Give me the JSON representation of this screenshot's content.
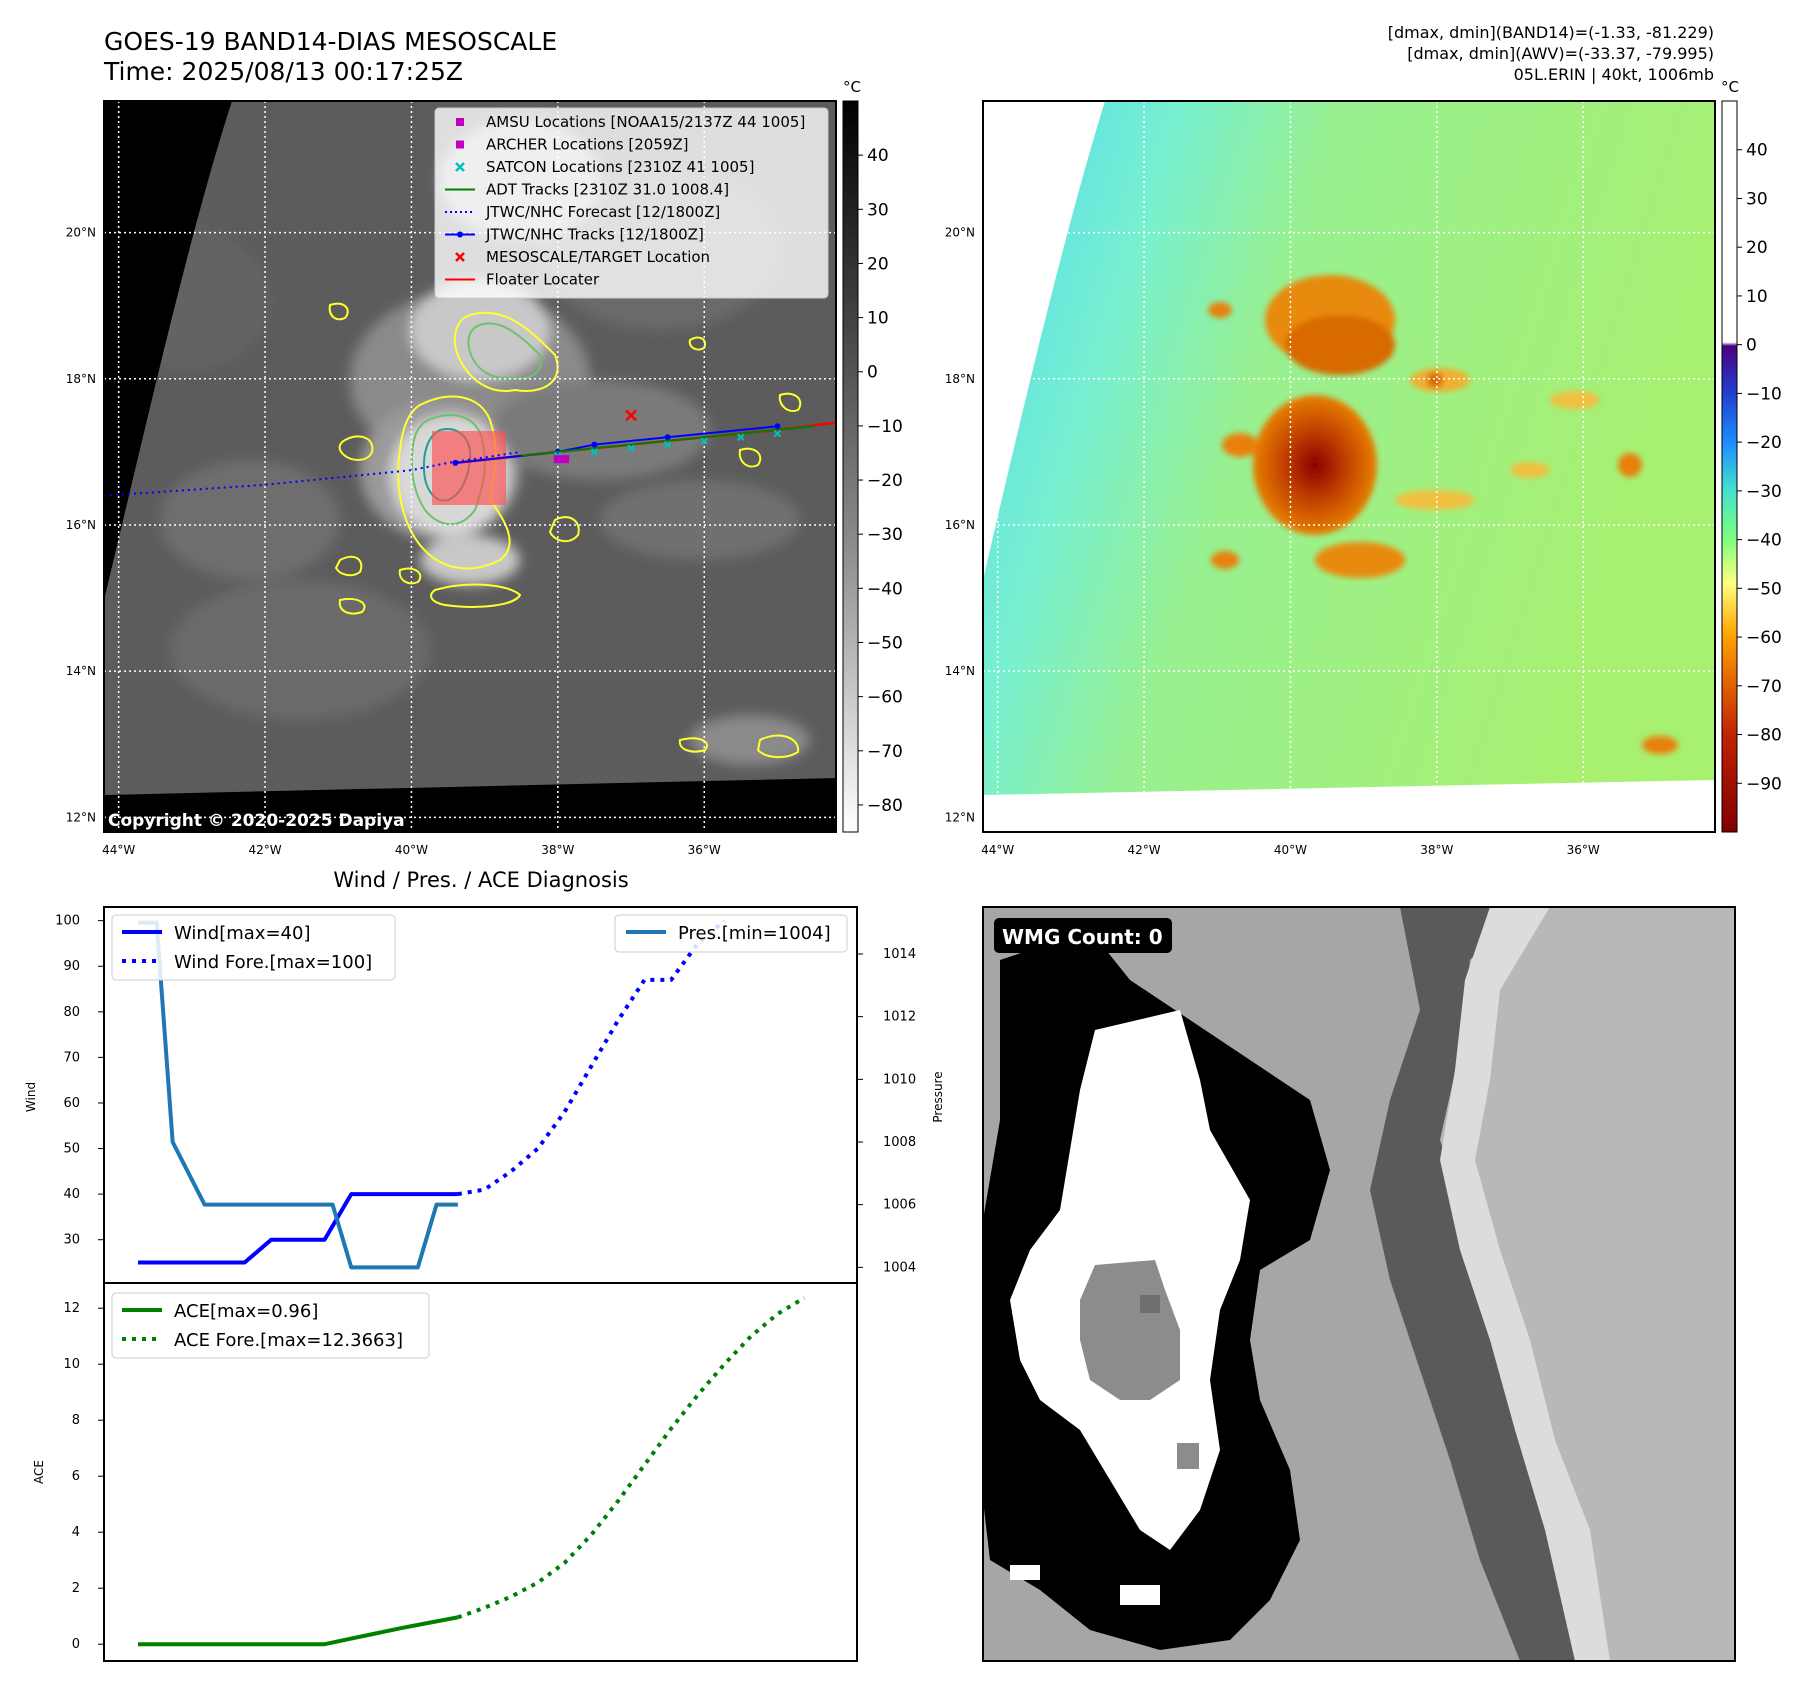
{
  "header": {
    "title_line1": "GOES-19 BAND14-DIAS MESOSCALE",
    "title_line2": "Time: 2025/08/13 00:17:25Z",
    "info_line1": "[dmax, dmin](BAND14)=(-1.33, -81.229)",
    "info_line2": "[dmax, dmin](AWV)=(-33.37, -79.995)",
    "info_line3": "05L.ERIN | 40kt, 1006mb"
  },
  "map_axes": {
    "lat_labels": [
      "20°N",
      "18°N",
      "16°N",
      "14°N",
      "12°N"
    ],
    "lat_values": [
      20,
      18,
      16,
      14,
      12
    ],
    "lon_labels": [
      "44°W",
      "42°W",
      "40°W",
      "38°W",
      "36°W"
    ],
    "lon_values": [
      -44,
      -42,
      -40,
      -38,
      -36
    ],
    "lon_range": [
      -44.2,
      -34.2
    ],
    "lat_range": [
      11.8,
      21.8
    ]
  },
  "ir_panel": {
    "copyright": "Copyright © 2020-2025 Dapiya",
    "colorbar_unit": "°C",
    "colorbar_ticks": [
      "40",
      "30",
      "20",
      "10",
      "0",
      "−10",
      "−20",
      "−30",
      "−40",
      "−50",
      "−60",
      "−70",
      "−80"
    ],
    "colorbar_values": [
      40,
      30,
      20,
      10,
      0,
      -10,
      -20,
      -30,
      -40,
      -50,
      -60,
      -70,
      -80
    ],
    "colorbar_range": [
      -85,
      50
    ],
    "legend": [
      {
        "label": "AMSU Locations [NOAA15/2137Z 44 1005]",
        "color": "#c000c0",
        "marker": "square"
      },
      {
        "label": "ARCHER Locations [2059Z]",
        "color": "#c000c0",
        "marker": "square"
      },
      {
        "label": "SATCON Locations [2310Z 41 1005]",
        "color": "#00c0c0",
        "marker": "x"
      },
      {
        "label": "ADT Tracks [2310Z 31.0 1008.4]",
        "color": "#008000",
        "marker": "line"
      },
      {
        "label": "JTWC/NHC Forecast [12/1800Z]",
        "color": "#0000ff",
        "marker": "dotted"
      },
      {
        "label": "JTWC/NHC Tracks [12/1800Z]",
        "color": "#0000ff",
        "marker": "line-dot"
      },
      {
        "label": "MESOSCALE/TARGET Location",
        "color": "#ff0000",
        "marker": "x"
      },
      {
        "label": "Floater Locater",
        "color": "#ff0000",
        "marker": "line"
      }
    ],
    "target_location": {
      "lon": -37.0,
      "lat": 17.5
    }
  },
  "awv_panel": {
    "colorbar_unit": "°C",
    "colorbar_ticks": [
      "40",
      "30",
      "20",
      "10",
      "0",
      "−10",
      "−20",
      "−30",
      "−40",
      "−50",
      "−60",
      "−70",
      "−80",
      "−90"
    ],
    "colorbar_values": [
      40,
      30,
      20,
      10,
      0,
      -10,
      -20,
      -30,
      -40,
      -50,
      -60,
      -70,
      -80,
      -90
    ],
    "colorbar_range": [
      -100,
      50
    ]
  },
  "diagnosis": {
    "title": "Wind / Pres. / ACE Diagnosis",
    "wind_ylabel": "Wind",
    "pressure_ylabel": "Pressure",
    "ace_ylabel": "ACE",
    "wind_ticks": [
      30,
      40,
      50,
      60,
      70,
      80,
      90,
      100
    ],
    "wind_ylim": [
      20.5,
      103
    ],
    "pressure_ticks": [
      1004,
      1006,
      1008,
      1010,
      1012,
      1014
    ],
    "pressure_ylim": [
      1003.5,
      1015.5
    ],
    "ace_ticks": [
      0,
      2,
      4,
      6,
      8,
      10,
      12
    ],
    "ace_ylim": [
      -0.6,
      12.9
    ],
    "x_range": [
      0,
      26
    ],
    "legend_wind": "Wind[max=40]",
    "legend_wind_fore": "Wind Fore.[max=100]",
    "legend_pres": "Pres.[min=1004]",
    "legend_ace": "ACE[max=0.96]",
    "legend_ace_fore": "ACE Fore.[max=12.3663]"
  },
  "chart_data": [
    {
      "type": "line",
      "series": [
        {
          "name": "Wind[max=40]",
          "color": "#0000ff",
          "style": "solid",
          "x": [
            0,
            1,
            2,
            3,
            4,
            5,
            6,
            7,
            8,
            9,
            10,
            11,
            12
          ],
          "values": [
            25,
            25,
            25,
            25,
            25,
            30,
            30,
            30,
            40,
            40,
            40,
            40,
            40
          ]
        },
        {
          "name": "Wind Fore.[max=100]",
          "color": "#0000ff",
          "style": "dotted",
          "x": [
            12,
            13,
            14,
            15,
            16,
            17,
            18,
            19,
            20,
            21,
            22
          ],
          "values": [
            40,
            41,
            45,
            50,
            58,
            68,
            78,
            87,
            87,
            95,
            100
          ]
        },
        {
          "name": "Pres.[min=1004]",
          "color": "#1f77b4",
          "style": "solid",
          "axis": "right",
          "x": [
            0,
            0.7,
            1.3,
            2.5,
            3.5,
            4.5,
            5.5,
            6.5,
            7.3,
            8.0,
            8.5,
            9.5,
            10.5,
            11.2,
            12
          ],
          "values": [
            1015,
            1015,
            1008,
            1006,
            1006,
            1006,
            1006,
            1006,
            1006,
            1004,
            1004,
            1004,
            1004,
            1006,
            1006
          ]
        }
      ],
      "xlim": [
        0,
        26
      ]
    },
    {
      "type": "line",
      "series": [
        {
          "name": "ACE[max=0.96]",
          "color": "#008000",
          "style": "solid",
          "x": [
            0,
            1,
            2,
            3,
            4,
            5,
            6,
            7,
            8,
            9,
            10,
            11,
            12
          ],
          "values": [
            0,
            0,
            0,
            0,
            0,
            0,
            0,
            0,
            0.2,
            0.4,
            0.6,
            0.78,
            0.96
          ]
        },
        {
          "name": "ACE Fore.[max=12.3663]",
          "color": "#008000",
          "style": "dotted",
          "x": [
            12,
            13,
            14,
            15,
            16,
            17,
            18,
            19,
            20,
            21,
            22,
            23,
            24,
            25
          ],
          "values": [
            0.96,
            1.3,
            1.7,
            2.2,
            2.9,
            3.9,
            5.1,
            6.4,
            7.7,
            8.9,
            10.0,
            11.0,
            11.8,
            12.37
          ]
        }
      ],
      "ylim": [
        -0.6,
        12.9
      ]
    }
  ],
  "wmg_panel": {
    "label": "WMG Count: 0"
  }
}
